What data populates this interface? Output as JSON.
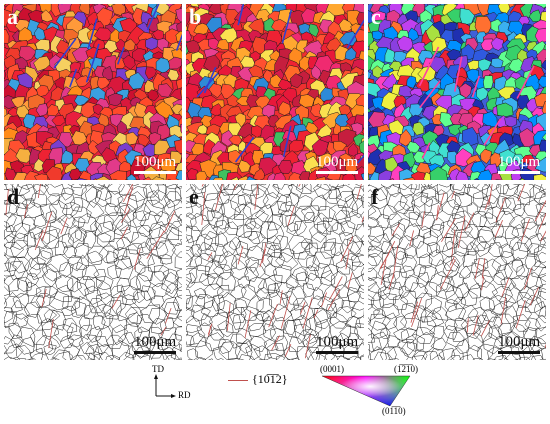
{
  "panels": [
    {
      "label": "a",
      "scale": "100μm",
      "kind": "ipf",
      "palette": [
        "#ee2233",
        "#f03a2c",
        "#e81e3f",
        "#ff4a2a",
        "#d9183c",
        "#f26b2a",
        "#ff8c1a",
        "#e0306a",
        "#c0205a",
        "#ff9a3a",
        "#e23a8a",
        "#f5b040",
        "#ff5030",
        "#cc1030",
        "#7a3fd0",
        "#3aa0e0",
        "#f7d060"
      ],
      "bg": "#e9203a"
    },
    {
      "label": "b",
      "scale": "100μm",
      "kind": "ipf",
      "palette": [
        "#ee2233",
        "#f4462a",
        "#e8183a",
        "#ff6a28",
        "#ff8a20",
        "#d81a4a",
        "#e94090",
        "#c61e3e",
        "#ffa830",
        "#ff5030",
        "#f02a70",
        "#2e8ad8",
        "#3fc060",
        "#fbe050"
      ],
      "bg": "#ee3030"
    },
    {
      "label": "c",
      "scale": "100μm",
      "kind": "ipf",
      "palette": [
        "#2f5ae0",
        "#3bb0f0",
        "#8a3fe0",
        "#e23a8a",
        "#ee2233",
        "#37d06a",
        "#a8e040",
        "#40e0d0",
        "#f0f040",
        "#1f30b0",
        "#c040f0",
        "#ff7030",
        "#60ff90",
        "#0090ff",
        "#ff40c0"
      ],
      "bg": "#4060d8"
    },
    {
      "label": "d",
      "scale": "100μm",
      "kind": "gb",
      "twin_density": 0.45
    },
    {
      "label": "e",
      "scale": "100μm",
      "kind": "gb",
      "twin_density": 0.8
    },
    {
      "label": "f",
      "scale": "100μm",
      "kind": "gb",
      "twin_density": 1.0
    }
  ],
  "legend": {
    "axes_td": "TD",
    "axes_rd": "RD",
    "twin_label": "{10̅1̅2}",
    "ipf_0001": "(0001)",
    "ipf_1210": "(1̅2̅1̅0)",
    "ipf_0110": "(01̅1̅0)"
  },
  "colors": {
    "grain_boundary": "#222222",
    "twin_boundary": "#c0504d",
    "ipf_red": "#ff0000",
    "ipf_green": "#00ff00",
    "ipf_blue": "#0000ff"
  }
}
